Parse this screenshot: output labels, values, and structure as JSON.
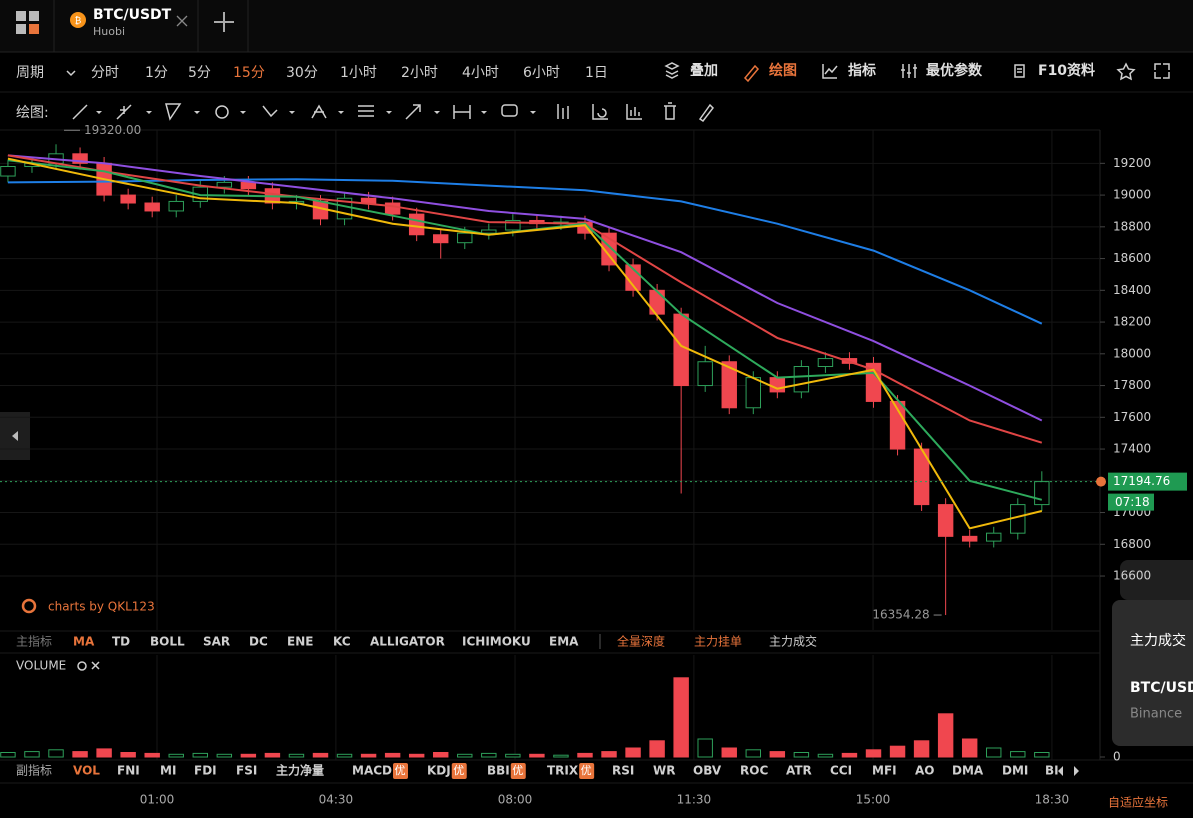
{
  "tabs": [
    {
      "symbol": "BTC/USDT",
      "exchange": "Huobi"
    }
  ],
  "toolbar": {
    "period_label": "周期",
    "periods": [
      "分时",
      "1分",
      "5分",
      "15分",
      "30分",
      "1小时",
      "2小时",
      "4小时",
      "6小时",
      "1日"
    ],
    "active_period": 3,
    "tools": [
      "叠加",
      "绘图",
      "指标",
      "最优参数",
      "F10资料"
    ],
    "active_tool": 1
  },
  "draw_toolbar": {
    "label": "绘图:"
  },
  "watermark": "charts by QKL123",
  "chart_data": {
    "type": "candlestick",
    "xlim": [
      -0.33,
      45.42
    ],
    "xticks": [
      {
        "value": 6.2,
        "label": "01:00"
      },
      {
        "value": 13.64,
        "label": "04:30"
      },
      {
        "value": 21.09,
        "label": "08:00"
      },
      {
        "value": 28.53,
        "label": "11:30"
      },
      {
        "value": 35.98,
        "label": "15:00"
      },
      {
        "value": 43.42,
        "label": "18:30"
      }
    ],
    "ylim": [
      16260,
      19410
    ],
    "yticks": [
      19200,
      19000,
      18800,
      18600,
      18400,
      18200,
      18000,
      17800,
      17600,
      17400,
      17200,
      17000,
      16800,
      16600
    ],
    "grid": true,
    "up_color": "#2ea05a",
    "down_color": "#f0474f",
    "open": [
      19120,
      19180,
      19200,
      19260,
      19200,
      19000,
      18950,
      18900,
      18960,
      19050,
      19080,
      19040,
      18950,
      18960,
      18850,
      18980,
      18950,
      18880,
      18750,
      18700,
      18760,
      18780,
      18840,
      18820,
      18830,
      18760,
      18560,
      18400,
      18250,
      17800,
      17950,
      17660,
      17850,
      17760,
      17920,
      17970,
      17940,
      17700,
      17400,
      17050,
      16850,
      16820,
      16870,
      17050
    ],
    "high": [
      19220,
      19240,
      19320,
      19300,
      19240,
      19040,
      18990,
      19000,
      19090,
      19120,
      19120,
      19080,
      19000,
      19000,
      19020,
      19020,
      18990,
      18920,
      18790,
      18800,
      18820,
      18880,
      18880,
      18870,
      18870,
      18800,
      18600,
      18440,
      18290,
      18050,
      17990,
      17890,
      17890,
      17960,
      18010,
      18010,
      17980,
      17740,
      17440,
      17090,
      16890,
      16910,
      17090,
      17260
    ],
    "low": [
      19080,
      19140,
      19160,
      19160,
      18960,
      18910,
      18860,
      18860,
      18920,
      19010,
      19000,
      18910,
      18910,
      18810,
      18810,
      18910,
      18840,
      18710,
      18600,
      18660,
      18720,
      18740,
      18780,
      18780,
      18720,
      18520,
      18360,
      18210,
      17120,
      17760,
      17620,
      17620,
      17720,
      17720,
      17880,
      17900,
      17660,
      17360,
      17010,
      16354.28,
      16780,
      16780,
      16830,
      17010
    ],
    "close": [
      19180,
      19200,
      19260,
      19200,
      19000,
      18950,
      18900,
      18960,
      19050,
      19080,
      19040,
      18950,
      18960,
      18850,
      18980,
      18950,
      18880,
      18750,
      18700,
      18760,
      18780,
      18840,
      18820,
      18830,
      18760,
      18560,
      18400,
      18250,
      17800,
      17950,
      17660,
      17850,
      17760,
      17920,
      17970,
      17940,
      17700,
      17400,
      17050,
      16850,
      16820,
      16870,
      17050,
      17195
    ],
    "series": [
      {
        "color": "#1e7ee6",
        "x": [
          0,
          4,
          8,
          12,
          16,
          20,
          24,
          28,
          32,
          36,
          40,
          43
        ],
        "values": [
          19080,
          19085,
          19095,
          19100,
          19090,
          19060,
          19030,
          18960,
          18820,
          18650,
          18400,
          18190
        ]
      },
      {
        "color": "#8f4fe0",
        "x": [
          0,
          4,
          8,
          12,
          16,
          20,
          24,
          28,
          32,
          36,
          40,
          43
        ],
        "values": [
          19250,
          19200,
          19120,
          19050,
          18980,
          18900,
          18850,
          18640,
          18320,
          18080,
          17800,
          17580
        ]
      },
      {
        "color": "#e04545",
        "x": [
          0,
          4,
          8,
          12,
          16,
          20,
          24,
          28,
          32,
          36,
          40,
          43
        ],
        "values": [
          19250,
          19150,
          19060,
          18990,
          18930,
          18830,
          18820,
          18450,
          18100,
          17900,
          17580,
          17440
        ]
      },
      {
        "color": "#2eaa5c",
        "x": [
          0,
          4,
          8,
          12,
          16,
          20,
          24,
          28,
          32,
          36,
          40,
          43
        ],
        "values": [
          19220,
          19150,
          19000,
          18990,
          18870,
          18750,
          18820,
          18250,
          17850,
          17880,
          17200,
          17080
        ]
      },
      {
        "color": "#f0b90b",
        "x": [
          0,
          4,
          8,
          12,
          16,
          20,
          24,
          28,
          32,
          36,
          40,
          43
        ],
        "values": [
          19230,
          19100,
          18980,
          18950,
          18820,
          18750,
          18810,
          18050,
          17780,
          17900,
          16900,
          17010
        ]
      }
    ],
    "current_price": 17194.76,
    "countdown": "07:18",
    "max_marker": {
      "value": 19320,
      "label": "19320.00",
      "x": 2
    },
    "min_marker": {
      "value": 16354.28,
      "x": 39
    },
    "volume": {
      "ylim": [
        0,
        100
      ],
      "yticks": [
        0
      ],
      "values": [
        5,
        6,
        8,
        6,
        9,
        5,
        4,
        3,
        4,
        3,
        3,
        4,
        3,
        4,
        3,
        3,
        4,
        3,
        5,
        3,
        4,
        3,
        3,
        2,
        4,
        6,
        10,
        18,
        88,
        20,
        10,
        8,
        6,
        5,
        3,
        4,
        8,
        12,
        18,
        48,
        20,
        10,
        6,
        5
      ]
    }
  },
  "main_indicators": {
    "label": "主指标",
    "items": [
      "MA",
      "TD",
      "BOLL",
      "SAR",
      "DC",
      "ENE",
      "KC",
      "ALLIGATOR",
      "ICHIMOKU",
      "EMA"
    ],
    "active": 0,
    "extras": [
      "全量深度",
      "主力挂单",
      "主力成交"
    ],
    "highlighted_extras": [
      0,
      1
    ]
  },
  "volume_label": "VOLUME",
  "sub_indicators": {
    "label": "副指标",
    "items": [
      {
        "name": "VOL"
      },
      {
        "name": "FNI"
      },
      {
        "name": "MI"
      },
      {
        "name": "FDI"
      },
      {
        "name": "FSI"
      },
      {
        "name": "主力净量"
      },
      {
        "name": "MACD",
        "badge": "优"
      },
      {
        "name": "KDJ",
        "badge": "优"
      },
      {
        "name": "BBI",
        "badge": "优"
      },
      {
        "name": "TRIX",
        "badge": "优"
      },
      {
        "name": "RSI"
      },
      {
        "name": "WR"
      },
      {
        "name": "OBV"
      },
      {
        "name": "ROC"
      },
      {
        "name": "ATR"
      },
      {
        "name": "CCI"
      },
      {
        "name": "MFI"
      },
      {
        "name": "AO"
      },
      {
        "name": "DMA"
      },
      {
        "name": "DMI"
      },
      {
        "name": "BI"
      }
    ],
    "active": 0
  },
  "side_card": {
    "title": "主力成交",
    "symbol": "BTC/USD",
    "exchange": "Binance"
  },
  "axis_mode": "自适应坐标"
}
